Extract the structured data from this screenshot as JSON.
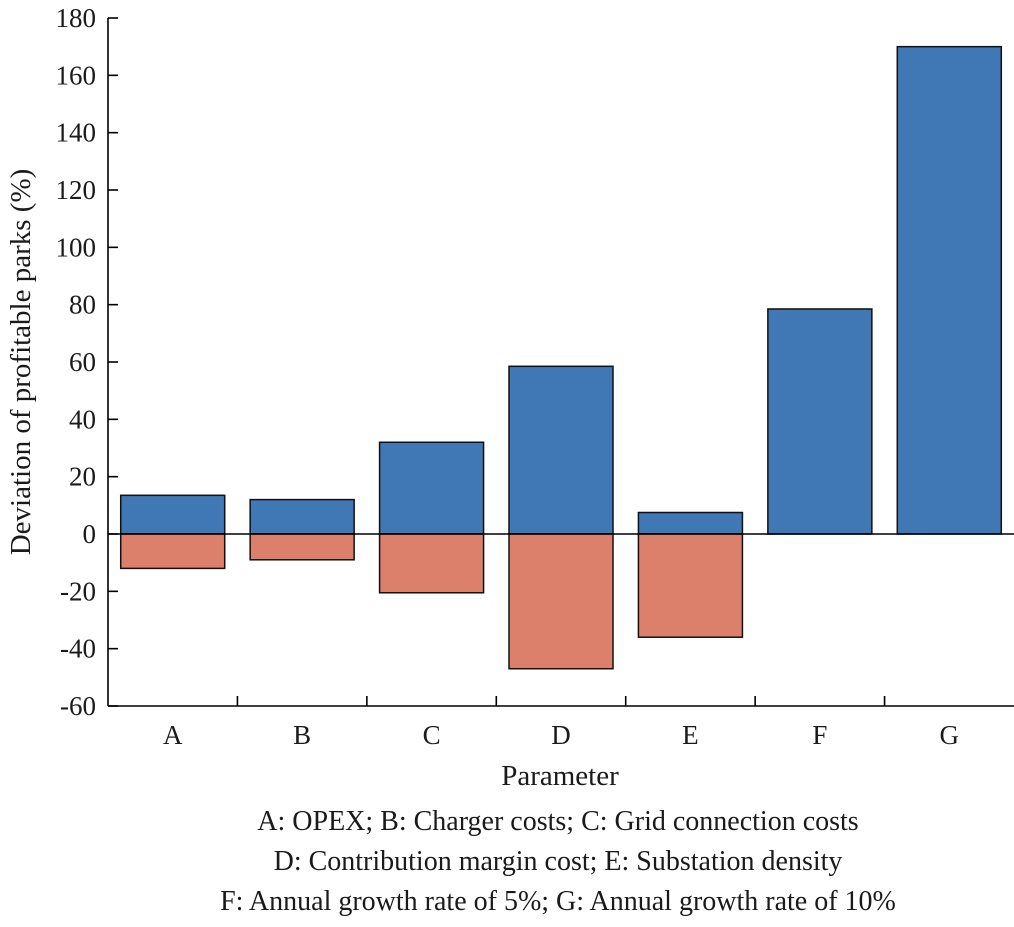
{
  "chart_data": {
    "type": "bar",
    "xlabel": "Parameter",
    "ylabel": "Deviation of profitable parks (%)",
    "categories": [
      "A",
      "B",
      "C",
      "D",
      "E",
      "F",
      "G"
    ],
    "ylim": [
      -60,
      180
    ],
    "yticks": [
      "-60",
      "-40",
      "-20",
      "0",
      "20",
      "40",
      "60",
      "80",
      "100",
      "120",
      "140",
      "160",
      "180"
    ],
    "series": [
      {
        "values": [
          13.5,
          12,
          32,
          58.5,
          7.5,
          78.5,
          170
        ],
        "color": "#3f78b4"
      },
      {
        "values": [
          -12,
          -9,
          -20.5,
          -47,
          -36,
          0,
          0
        ],
        "color": "#dc806c"
      }
    ],
    "grid": false,
    "legend": "none"
  },
  "footnotes": [
    "A: OPEX; B: Charger costs; C: Grid connection costs",
    "D: Contribution margin cost; E: Substation density",
    "F: Annual growth rate of 5%; G: Annual growth rate of 10%"
  ]
}
